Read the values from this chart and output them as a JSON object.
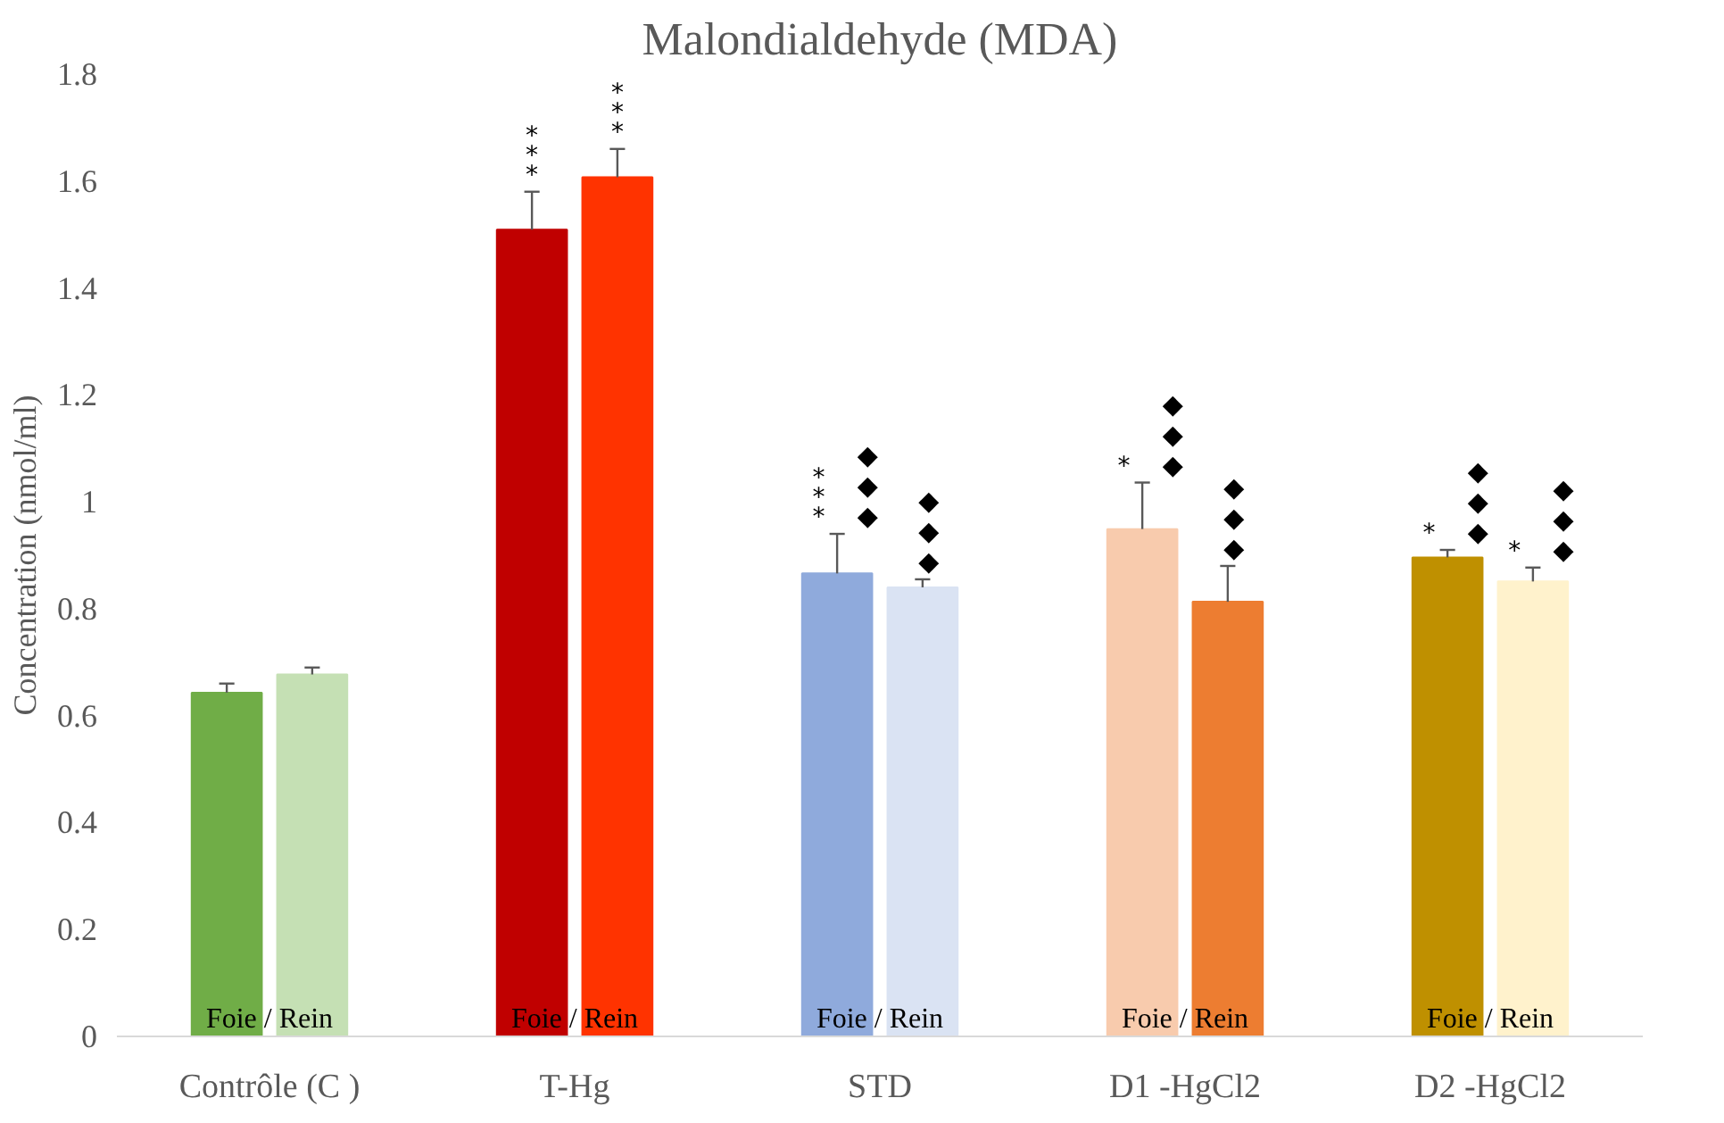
{
  "chart_data": {
    "type": "bar",
    "title": "Malondialdehyde (MDA)",
    "ylabel": "Concentration (nmol/ml)",
    "categories": [
      "Contrôle (C )",
      "T-Hg",
      "STD",
      "D1 -HgCl2",
      "D2 -HgCl2"
    ],
    "series": [
      {
        "colors": [
          "#70ad47",
          "#c00000",
          "#8faadc",
          "#f8cbad",
          "#bf9000"
        ],
        "values": [
          0.643,
          1.509,
          0.866,
          0.949,
          0.896
        ],
        "errors": [
          [
            0.643,
            0.66
          ],
          [
            1.509,
            1.58
          ],
          [
            0.866,
            0.94
          ],
          [
            0.949,
            1.036
          ],
          [
            0.896,
            0.91
          ]
        ],
        "value_labels": [
          null,
          "***",
          "***◆◆◆",
          "*◆◆◆",
          "*◆◆◆"
        ]
      },
      {
        "colors": [
          "#c5e0b4",
          "#ff3300",
          "#dae3f3",
          "#ed7d31",
          "#fff2cc"
        ],
        "values": [
          0.677,
          1.607,
          0.84,
          0.813,
          0.851
        ],
        "errors": [
          [
            0.677,
            0.69
          ],
          [
            1.607,
            1.66
          ],
          [
            0.84,
            0.855
          ],
          [
            0.813,
            0.88
          ],
          [
            0.851,
            0.877
          ]
        ],
        "value_labels": [
          null,
          "***",
          "◆◆◆",
          "◆◆◆",
          "*◆◆◆"
        ]
      }
    ],
    "ylim": [
      0,
      1.8
    ],
    "yticks": [
      0,
      0.2,
      0.4,
      0.6,
      0.8,
      1,
      1.2,
      1.4,
      1.6,
      1.8
    ],
    "grid": false,
    "annotations": [
      {
        "text": "Foie / Rein",
        "x": "Contrôle (C )",
        "y": 0
      },
      {
        "text": "Foie / Rein",
        "x": "T-Hg",
        "y": 0
      },
      {
        "text": "Foie / Rein",
        "x": "STD",
        "y": 0
      },
      {
        "text": "Foie / Rein",
        "x": "D1 -HgCl2",
        "y": 0
      },
      {
        "text": "Foie / Rein",
        "x": "D2 -HgCl2",
        "y": 0
      }
    ]
  }
}
